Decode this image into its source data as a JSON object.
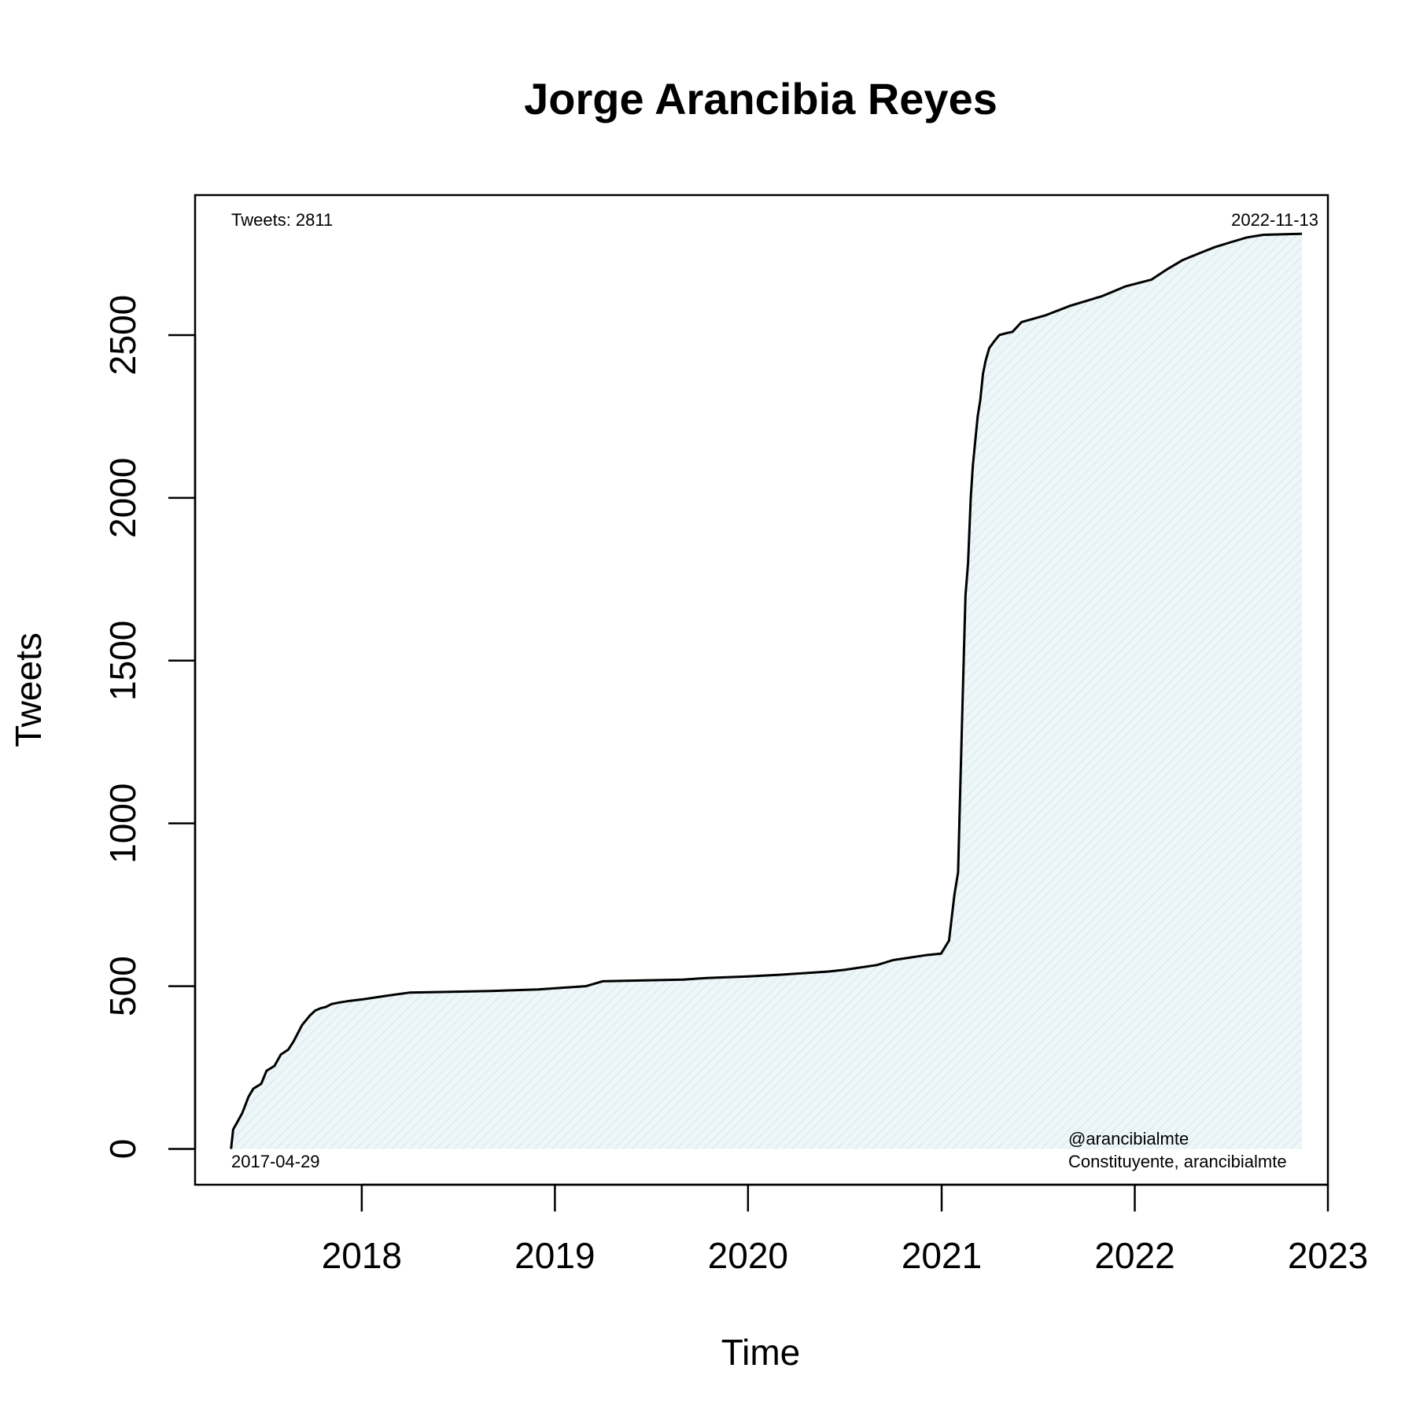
{
  "chart_data": {
    "type": "area",
    "title": "Jorge Arancibia Reyes",
    "xlabel": "Time",
    "ylabel": "Tweets",
    "x_ticks": [
      "2018",
      "2019",
      "2020",
      "2021",
      "2022",
      "2023"
    ],
    "y_ticks": [
      "0",
      "500",
      "1000",
      "1500",
      "2000",
      "2500"
    ],
    "xlim": [
      "2017-02-20",
      "2023-01-01"
    ],
    "ylim": [
      -110,
      2930
    ],
    "grid": false,
    "series": [
      {
        "color": "#000000",
        "fill": "#e8f3f5",
        "x": [
          "2017-04-29",
          "2017-05-03",
          "2017-05-10",
          "2017-05-20",
          "2017-06-01",
          "2017-06-10",
          "2017-06-25",
          "2017-07-05",
          "2017-07-20",
          "2017-08-01",
          "2017-08-15",
          "2017-08-25",
          "2017-09-10",
          "2017-09-25",
          "2017-10-05",
          "2017-10-15",
          "2017-10-25",
          "2017-11-05",
          "2017-11-20",
          "2017-12-10",
          "2018-01-05",
          "2018-02-15",
          "2018-04-01",
          "2018-06-01",
          "2018-09-01",
          "2018-12-01",
          "2019-01-15",
          "2019-03-01",
          "2019-04-01",
          "2019-06-01",
          "2019-09-01",
          "2019-10-15",
          "2019-12-31",
          "2020-03-01",
          "2020-06-01",
          "2020-07-01",
          "2020-09-01",
          "2020-10-01",
          "2020-12-01",
          "2020-12-31",
          "2021-01-15",
          "2021-01-25",
          "2021-02-01",
          "2021-02-05",
          "2021-02-10",
          "2021-02-15",
          "2021-02-20",
          "2021-02-25",
          "2021-03-01",
          "2021-03-10",
          "2021-03-15",
          "2021-03-20",
          "2021-03-25",
          "2021-04-01",
          "2021-04-10",
          "2021-04-20",
          "2021-05-01",
          "2021-05-15",
          "2021-06-01",
          "2021-07-15",
          "2021-09-01",
          "2021-11-01",
          "2021-12-15",
          "2022-02-01",
          "2022-03-01",
          "2022-04-01",
          "2022-05-01",
          "2022-06-01",
          "2022-07-01",
          "2022-08-01",
          "2022-09-01",
          "2022-11-13"
        ],
        "y": [
          0,
          60,
          80,
          110,
          160,
          185,
          200,
          240,
          255,
          290,
          305,
          330,
          380,
          410,
          425,
          432,
          436,
          445,
          450,
          455,
          460,
          470,
          480,
          482,
          485,
          490,
          495,
          500,
          515,
          517,
          520,
          525,
          530,
          535,
          545,
          550,
          565,
          580,
          595,
          600,
          640,
          780,
          850,
          1100,
          1400,
          1700,
          1800,
          2000,
          2100,
          2250,
          2300,
          2380,
          2420,
          2460,
          2480,
          2500,
          2505,
          2510,
          2540,
          2560,
          2590,
          2620,
          2650,
          2670,
          2700,
          2730,
          2750,
          2770,
          2785,
          2800,
          2808,
          2811
        ]
      }
    ],
    "annotations": {
      "top_left": "Tweets: 2811",
      "top_right": "2022-11-13",
      "bottom_left": "2017-04-29",
      "bottom_right_line1": "@arancibialmte",
      "bottom_right_line2": "Constituyente, arancibialmte"
    }
  }
}
